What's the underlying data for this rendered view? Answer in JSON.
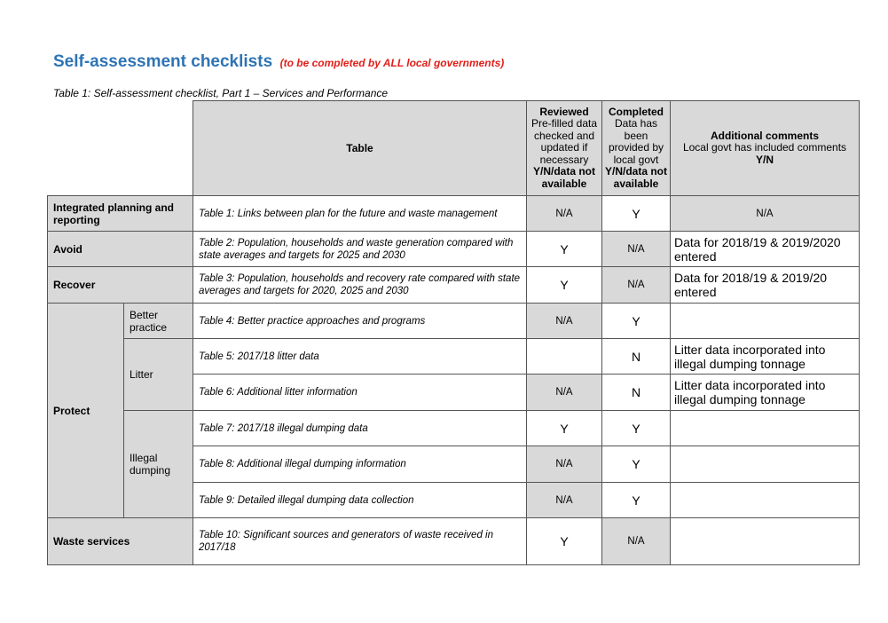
{
  "header": {
    "title": "Self-assessment checklists",
    "subtitle": "(to be completed by ALL local governments)"
  },
  "caption": "Table 1: Self-assessment checklist, Part 1 – Services and Performance",
  "table": {
    "columns": {
      "table": "Table",
      "reviewed": {
        "title": "Reviewed",
        "description": "Pre-filled data checked and updated if necessary",
        "options": "Y/N/data not available"
      },
      "completed": {
        "title": "Completed",
        "description": "Data has been provided by local govt",
        "options": "Y/N/data not available"
      },
      "comments": {
        "title": "Additional comments",
        "description": "Local govt has included comments",
        "options": "Y/N"
      }
    },
    "rows": [
      {
        "group": "Integrated planning and reporting",
        "table": "Table 1: Links between plan for the future and waste management",
        "reviewed": "N/A",
        "completed": "Y",
        "comments": "N/A"
      },
      {
        "group": "Avoid",
        "table": "Table 2: Population, households and waste generation compared with state averages and targets for 2025 and 2030",
        "reviewed": "Y",
        "completed": "N/A",
        "comments": "Data for 2018/19 & 2019/2020 entered"
      },
      {
        "group": "Recover",
        "table": "Table 3: Population, households and recovery rate compared with state averages and targets for 2020, 2025 and 2030",
        "reviewed": "Y",
        "completed": "N/A",
        "comments": "Data for 2018/19 & 2019/20 entered"
      },
      {
        "group": "Protect",
        "subgroup": "Better practice",
        "table": "Table 4: Better practice approaches and programs",
        "reviewed": "N/A",
        "completed": "Y"
      },
      {
        "subgroup": "Litter",
        "table": "Table 5: 2017/18 litter data",
        "completed": "N",
        "comments": "Litter data incorporated into illegal dumping tonnage"
      },
      {
        "table": "Table 6: Additional litter information",
        "reviewed": "N/A",
        "completed": "N",
        "comments": "Litter data incorporated into illegal dumping tonnage"
      },
      {
        "subgroup": "Illegal dumping",
        "table": "Table 7: 2017/18 illegal dumping data",
        "reviewed": "Y",
        "completed": "Y"
      },
      {
        "table": "Table 8: Additional illegal dumping information",
        "reviewed": "N/A",
        "completed": "Y"
      },
      {
        "table": "Table 9: Detailed illegal dumping data collection",
        "reviewed": "N/A",
        "completed": "Y"
      },
      {
        "group": "Waste services",
        "table": "Table 10: Significant sources and generators of waste received in 2017/18",
        "reviewed": "Y",
        "completed": "N/A"
      }
    ]
  }
}
